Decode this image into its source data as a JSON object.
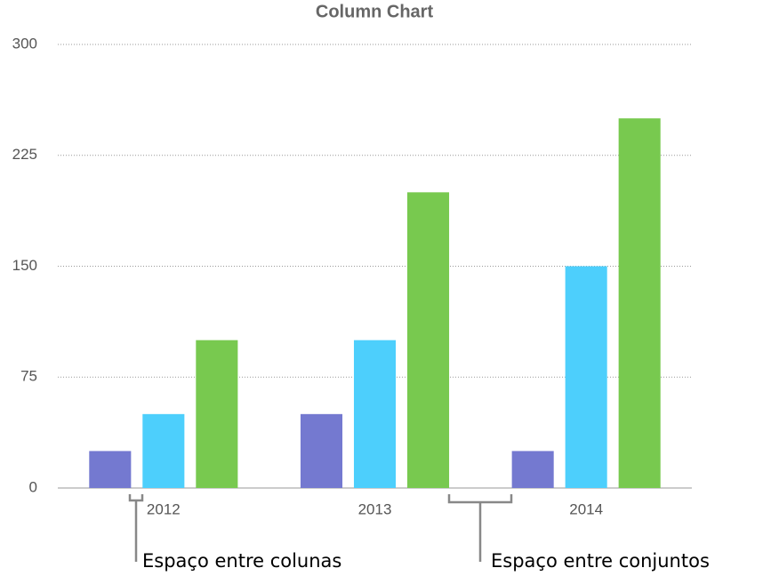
{
  "chart_data": {
    "type": "bar",
    "title": "Column Chart",
    "categories": [
      "2012",
      "2013",
      "2014"
    ],
    "series": [
      {
        "color": "#7479d0",
        "values": [
          25,
          50,
          25
        ]
      },
      {
        "color": "#4dcffc",
        "values": [
          50,
          100,
          150
        ]
      },
      {
        "color": "#78c94f",
        "values": [
          100,
          200,
          250
        ]
      }
    ],
    "ylim": [
      0,
      300
    ],
    "yticks": [
      0,
      75,
      150,
      225,
      300
    ],
    "grid": true,
    "annotations": [
      "Espaço entre colunas",
      "Espaço entre conjuntos"
    ]
  }
}
